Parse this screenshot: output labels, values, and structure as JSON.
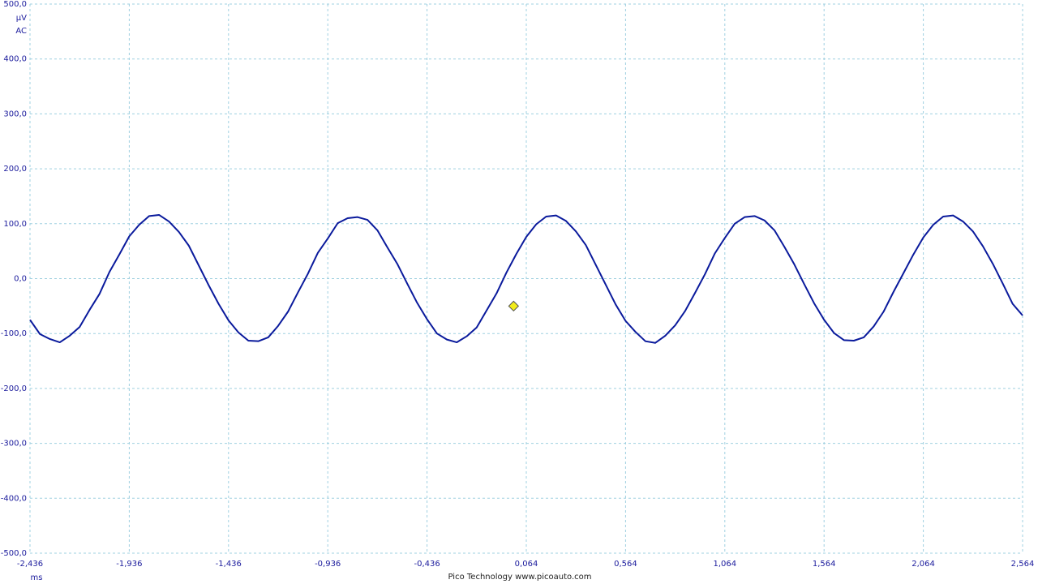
{
  "chart_data": {
    "type": "line",
    "y_unit": "µV",
    "coupling": "AC",
    "x_unit": "ms",
    "footer": "Pico Technology  www.picoauto.com",
    "x": [
      -2.436,
      -2.386,
      -2.336,
      -2.286,
      -2.236,
      -2.186,
      -2.136,
      -2.086,
      -2.036,
      -1.986,
      -1.936,
      -1.886,
      -1.836,
      -1.786,
      -1.736,
      -1.686,
      -1.636,
      -1.586,
      -1.536,
      -1.486,
      -1.436,
      -1.386,
      -1.336,
      -1.286,
      -1.236,
      -1.186,
      -1.136,
      -1.086,
      -1.036,
      -0.986,
      -0.936,
      -0.886,
      -0.836,
      -0.786,
      -0.736,
      -0.686,
      -0.636,
      -0.586,
      -0.536,
      -0.486,
      -0.436,
      -0.386,
      -0.336,
      -0.286,
      -0.236,
      -0.186,
      -0.136,
      -0.086,
      -0.036,
      0.014,
      0.064,
      0.114,
      0.164,
      0.214,
      0.264,
      0.314,
      0.364,
      0.414,
      0.464,
      0.514,
      0.564,
      0.614,
      0.664,
      0.714,
      0.764,
      0.814,
      0.864,
      0.914,
      0.964,
      1.014,
      1.064,
      1.114,
      1.164,
      1.214,
      1.264,
      1.314,
      1.364,
      1.414,
      1.464,
      1.514,
      1.564,
      1.614,
      1.664,
      1.714,
      1.764,
      1.814,
      1.864,
      1.914,
      1.964,
      2.014,
      2.064,
      2.114,
      2.164,
      2.214,
      2.264,
      2.314,
      2.364,
      2.414,
      2.464,
      2.514,
      2.564
    ],
    "series": [
      {
        "color": "#0a1a9c",
        "values": [
          -75,
          -101,
          -110,
          -116,
          -104,
          -88,
          -57,
          -28,
          12,
          44,
          77,
          98,
          114,
          116,
          104,
          85,
          60,
          24,
          -12,
          -46,
          -76,
          -98,
          -113,
          -114,
          -107,
          -86,
          -60,
          -25,
          9,
          47,
          73,
          101,
          110,
          112,
          107,
          88,
          57,
          27,
          -9,
          -44,
          -74,
          -100,
          -111,
          -116,
          -105,
          -89,
          -58,
          -27,
          11,
          45,
          76,
          99,
          113,
          115,
          105,
          86,
          61,
          25,
          -11,
          -47,
          -77,
          -97,
          -114,
          -117,
          -104,
          -85,
          -59,
          -26,
          8,
          46,
          74,
          100,
          112,
          114,
          106,
          88,
          58,
          26,
          -10,
          -45,
          -75,
          -99,
          -112,
          -113,
          -107,
          -87,
          -60,
          -24,
          10,
          44,
          75,
          98,
          113,
          115,
          104,
          86,
          59,
          27,
          -9,
          -46,
          -67
        ]
      }
    ],
    "trigger": {
      "x": 0,
      "y": -50,
      "color": "#f2ec1a"
    },
    "xlim": [
      -2.436,
      2.564
    ],
    "xticks": [
      {
        "value": -2.436,
        "label": "-2,436"
      },
      {
        "value": -1.936,
        "label": "-1,936"
      },
      {
        "value": -1.436,
        "label": "-1,436"
      },
      {
        "value": -0.936,
        "label": "-0,936"
      },
      {
        "value": -0.436,
        "label": "-0,436"
      },
      {
        "value": 0.064,
        "label": "0,064"
      },
      {
        "value": 0.564,
        "label": "0,564"
      },
      {
        "value": 1.064,
        "label": "1,064"
      },
      {
        "value": 1.564,
        "label": "1,564"
      },
      {
        "value": 2.064,
        "label": "2,064"
      },
      {
        "value": 2.564,
        "label": "2,564"
      }
    ],
    "ylim": [
      -500,
      500
    ],
    "yticks": [
      {
        "value": -500,
        "label": "-500,0"
      },
      {
        "value": -400,
        "label": "-400,0"
      },
      {
        "value": -300,
        "label": "-300,0"
      },
      {
        "value": -200,
        "label": "-200,0"
      },
      {
        "value": -100,
        "label": "-100,0"
      },
      {
        "value": 0,
        "label": "0,0"
      },
      {
        "value": 100,
        "label": "100,0"
      },
      {
        "value": 200,
        "label": "200,0"
      },
      {
        "value": 300,
        "label": "300,0"
      },
      {
        "value": 400,
        "label": "400,0"
      },
      {
        "value": 500,
        "label": "500,0"
      }
    ],
    "grid": true
  }
}
